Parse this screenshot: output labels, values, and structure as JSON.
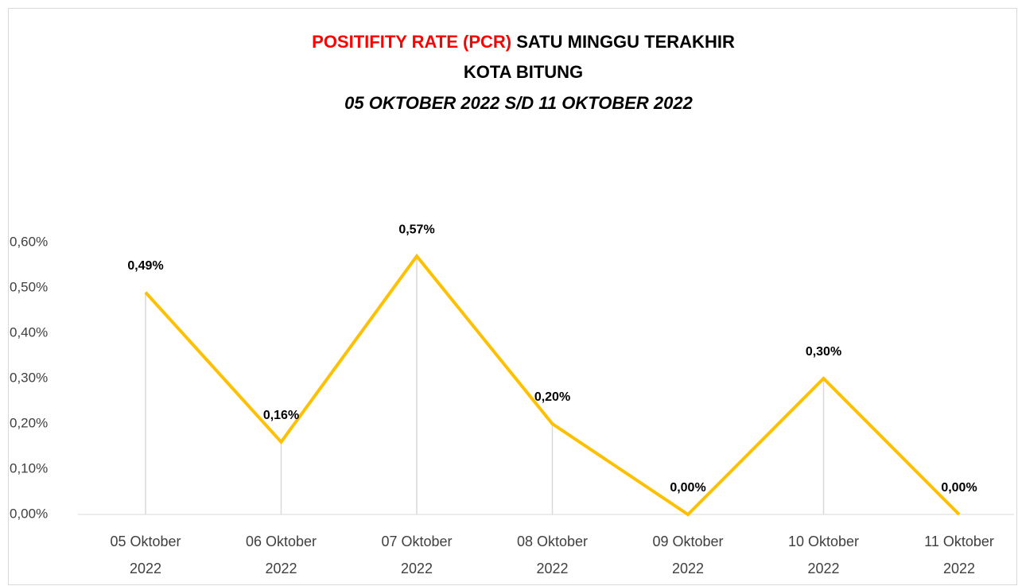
{
  "chart_data": {
    "type": "line",
    "title": {
      "highlight": "POSITIFITY RATE (PCR)",
      "rest": "SATU MINGGU TERAKHIR"
    },
    "title_highlight_color": "#ff0000",
    "subtitle": [
      "KOTA BITUNG",
      "05 OKTOBER 2022 S/D 11 OKTOBER 2022"
    ],
    "categories": [
      [
        "05 Oktober",
        "2022"
      ],
      [
        "06 Oktober",
        "2022"
      ],
      [
        "07 Oktober",
        "2022"
      ],
      [
        "08 Oktober",
        "2022"
      ],
      [
        "09 Oktober",
        "2022"
      ],
      [
        "10 Oktober",
        "2022"
      ],
      [
        "11 Oktober",
        "2022"
      ]
    ],
    "values": [
      0.49,
      0.16,
      0.57,
      0.2,
      0,
      0.3,
      0
    ],
    "value_labels": [
      "0,49%",
      "0,16%",
      "0,57%",
      "0,20%",
      "0,00%",
      "0,30%",
      "0,00%"
    ],
    "color": "#ffc000",
    "drop_lines": true,
    "ylim": [
      0,
      0.6
    ],
    "yticks": [
      {
        "value": 0,
        "label": "0,00%"
      },
      {
        "value": 0.1,
        "label": "0,10%"
      },
      {
        "value": 0.2,
        "label": "0,20%"
      },
      {
        "value": 0.3,
        "label": "0,30%"
      },
      {
        "value": 0.4,
        "label": "0,40%"
      },
      {
        "value": 0.5,
        "label": "0,50%"
      },
      {
        "value": 0.6,
        "label": "0,60%"
      }
    ]
  }
}
